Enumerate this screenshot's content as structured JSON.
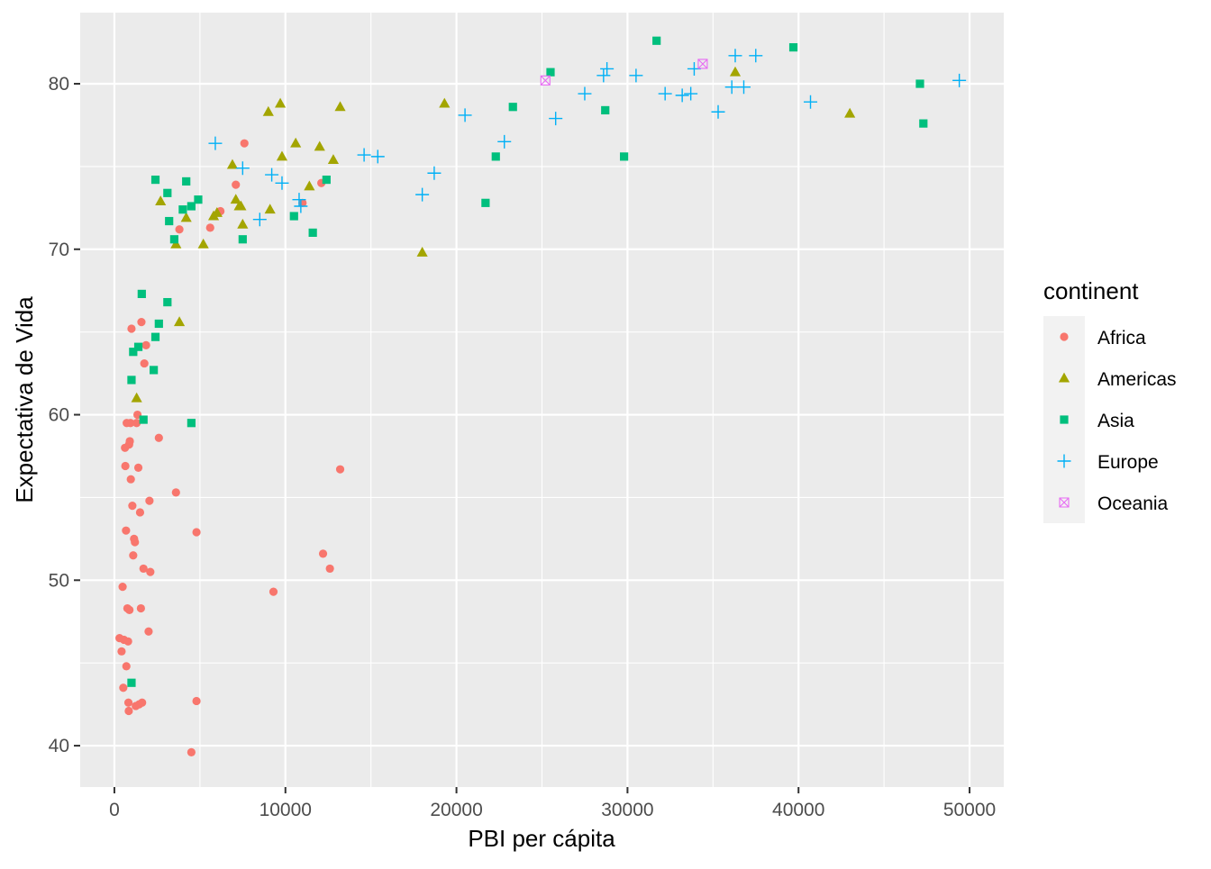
{
  "chart_data": {
    "type": "scatter",
    "title": "",
    "xlabel": "PBI per cápita",
    "ylabel": "Expectativa de Vida",
    "xlim": [
      -2000,
      52000
    ],
    "ylim": [
      37.5,
      84.3
    ],
    "x_ticks": [
      0,
      10000,
      20000,
      30000,
      40000,
      50000
    ],
    "x_tick_labels": [
      "0",
      "10000",
      "20000",
      "30000",
      "40000",
      "50000"
    ],
    "y_ticks": [
      40,
      50,
      60,
      70,
      80
    ],
    "y_tick_labels": [
      "40",
      "50",
      "60",
      "70",
      "80"
    ],
    "grid": true,
    "legend": {
      "title": "continent",
      "position": "right"
    },
    "series": [
      {
        "name": "Africa",
        "color": "#F8766D",
        "shape": "circle",
        "points": [
          [
            300,
            46.5
          ],
          [
            420,
            45.7
          ],
          [
            480,
            49.6
          ],
          [
            520,
            43.5
          ],
          [
            560,
            46.4
          ],
          [
            620,
            58.0
          ],
          [
            640,
            56.9
          ],
          [
            680,
            53.0
          ],
          [
            700,
            44.8
          ],
          [
            720,
            59.5
          ],
          [
            760,
            48.3
          ],
          [
            800,
            46.3
          ],
          [
            820,
            42.6
          ],
          [
            840,
            42.1
          ],
          [
            860,
            58.2
          ],
          [
            880,
            48.2
          ],
          [
            900,
            58.4
          ],
          [
            940,
            59.5
          ],
          [
            960,
            56.1
          ],
          [
            1000,
            65.2
          ],
          [
            1050,
            54.5
          ],
          [
            1100,
            51.5
          ],
          [
            1150,
            52.5
          ],
          [
            1200,
            52.3
          ],
          [
            1250,
            42.4
          ],
          [
            1300,
            59.5
          ],
          [
            1350,
            60.0
          ],
          [
            1400,
            56.8
          ],
          [
            1450,
            42.5
          ],
          [
            1500,
            54.1
          ],
          [
            1550,
            48.3
          ],
          [
            1580,
            65.6
          ],
          [
            1620,
            42.6
          ],
          [
            1700,
            50.7
          ],
          [
            1750,
            63.1
          ],
          [
            1850,
            64.2
          ],
          [
            2000,
            46.9
          ],
          [
            2050,
            54.8
          ],
          [
            2100,
            50.5
          ],
          [
            2600,
            58.6
          ],
          [
            3600,
            55.3
          ],
          [
            3800,
            71.2
          ],
          [
            4500,
            39.6
          ],
          [
            4800,
            42.7
          ],
          [
            4800,
            52.9
          ],
          [
            5600,
            71.3
          ],
          [
            6200,
            72.3
          ],
          [
            7100,
            73.9
          ],
          [
            7600,
            76.4
          ],
          [
            9300,
            49.3
          ],
          [
            11000,
            72.8
          ],
          [
            12100,
            74.0
          ],
          [
            12200,
            51.6
          ],
          [
            12600,
            50.7
          ],
          [
            13200,
            56.7
          ]
        ]
      },
      {
        "name": "Americas",
        "color": "#A3A500",
        "shape": "triangle",
        "points": [
          [
            1300,
            61.0
          ],
          [
            2700,
            72.9
          ],
          [
            3600,
            70.3
          ],
          [
            3800,
            65.6
          ],
          [
            4200,
            71.9
          ],
          [
            5200,
            70.3
          ],
          [
            5800,
            72.0
          ],
          [
            6000,
            72.2
          ],
          [
            6900,
            75.1
          ],
          [
            7100,
            73.0
          ],
          [
            7300,
            72.6
          ],
          [
            7400,
            72.6
          ],
          [
            7500,
            71.5
          ],
          [
            9000,
            78.3
          ],
          [
            9100,
            72.4
          ],
          [
            9700,
            78.8
          ],
          [
            9800,
            75.6
          ],
          [
            10600,
            76.4
          ],
          [
            11400,
            73.8
          ],
          [
            12000,
            76.2
          ],
          [
            12800,
            75.4
          ],
          [
            13200,
            78.6
          ],
          [
            18000,
            69.8
          ],
          [
            19300,
            78.8
          ],
          [
            36300,
            80.7
          ],
          [
            43000,
            78.2
          ]
        ]
      },
      {
        "name": "Asia",
        "color": "#00BF7D",
        "shape": "square",
        "points": [
          [
            1000,
            62.1
          ],
          [
            1000,
            43.8
          ],
          [
            1100,
            63.8
          ],
          [
            1400,
            64.1
          ],
          [
            1600,
            67.3
          ],
          [
            1700,
            59.7
          ],
          [
            2300,
            62.7
          ],
          [
            2400,
            64.7
          ],
          [
            2400,
            74.2
          ],
          [
            2600,
            65.5
          ],
          [
            3100,
            73.4
          ],
          [
            3100,
            66.8
          ],
          [
            3200,
            71.7
          ],
          [
            3500,
            70.6
          ],
          [
            4000,
            72.4
          ],
          [
            4200,
            74.1
          ],
          [
            4500,
            72.6
          ],
          [
            4500,
            59.5
          ],
          [
            4900,
            73.0
          ],
          [
            7500,
            70.6
          ],
          [
            10500,
            72.0
          ],
          [
            11600,
            71.0
          ],
          [
            12400,
            74.2
          ],
          [
            21700,
            72.8
          ],
          [
            22300,
            75.6
          ],
          [
            23300,
            78.6
          ],
          [
            25500,
            80.7
          ],
          [
            28700,
            78.4
          ],
          [
            29800,
            75.6
          ],
          [
            31700,
            82.6
          ],
          [
            39700,
            82.2
          ],
          [
            47100,
            80.0
          ],
          [
            47300,
            77.6
          ]
        ]
      },
      {
        "name": "Europe",
        "color": "#00B0F6",
        "shape": "plus",
        "points": [
          [
            5900,
            76.4
          ],
          [
            7500,
            74.9
          ],
          [
            8500,
            71.8
          ],
          [
            9200,
            74.5
          ],
          [
            9800,
            74.0
          ],
          [
            10800,
            73.0
          ],
          [
            10900,
            72.6
          ],
          [
            14600,
            75.7
          ],
          [
            15400,
            75.6
          ],
          [
            18000,
            73.3
          ],
          [
            18700,
            74.6
          ],
          [
            20500,
            78.1
          ],
          [
            22800,
            76.5
          ],
          [
            25800,
            77.9
          ],
          [
            27500,
            79.4
          ],
          [
            28600,
            80.5
          ],
          [
            28800,
            80.9
          ],
          [
            30500,
            80.5
          ],
          [
            32200,
            79.4
          ],
          [
            33200,
            79.3
          ],
          [
            33700,
            79.4
          ],
          [
            33900,
            80.9
          ],
          [
            35300,
            78.3
          ],
          [
            36100,
            79.8
          ],
          [
            36300,
            81.7
          ],
          [
            36800,
            79.8
          ],
          [
            37500,
            81.7
          ],
          [
            40700,
            78.9
          ],
          [
            49400,
            80.2
          ]
        ]
      },
      {
        "name": "Oceania",
        "color": "#E76BF3",
        "shape": "square-x",
        "points": [
          [
            25200,
            80.2
          ],
          [
            34400,
            81.2
          ]
        ]
      }
    ]
  }
}
